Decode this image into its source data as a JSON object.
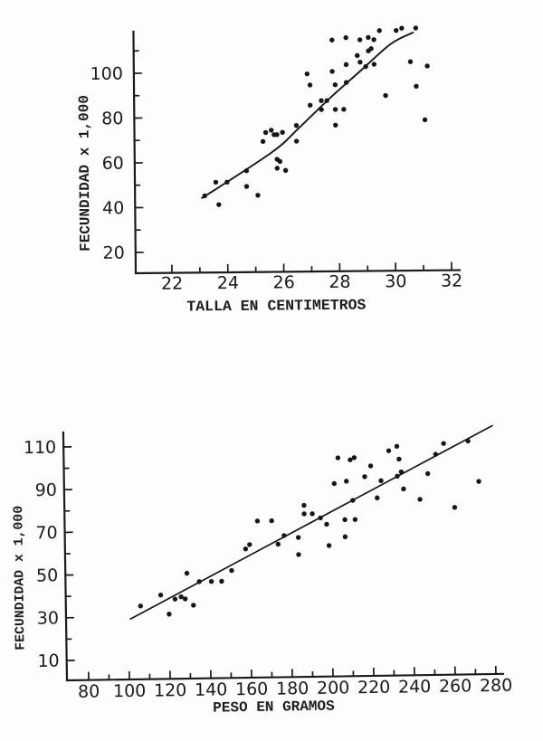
{
  "page": {
    "kind": "scanned scientific figure, two scatter plots of fish fecundity",
    "ink_color": "#1b1b1b",
    "paper_color": "#fdfdfb"
  },
  "chart_data": [
    {
      "type": "scatter",
      "title": "",
      "xlabel": "TALLA EN CENTIMETROS",
      "ylabel": "FECUNDIDAD  x  1,000",
      "xlim": [
        21,
        32.5
      ],
      "ylim": [
        10,
        119
      ],
      "grid": false,
      "legend": "none",
      "x_ticks_labeled": [
        22,
        24,
        26,
        28,
        30,
        32
      ],
      "x_ticks_minor": [
        23,
        25,
        27,
        29,
        31
      ],
      "y_ticks_labeled": [
        20,
        40,
        60,
        80,
        100
      ],
      "y_ticks_minor": [
        30,
        50,
        70,
        90,
        110
      ],
      "points": [
        [
          23.2,
          45
        ],
        [
          23.7,
          41
        ],
        [
          23.6,
          51
        ],
        [
          24.0,
          51
        ],
        [
          24.7,
          56
        ],
        [
          24.7,
          49
        ],
        [
          25.1,
          45
        ],
        [
          25.3,
          69
        ],
        [
          25.4,
          73
        ],
        [
          25.6,
          74
        ],
        [
          25.7,
          72
        ],
        [
          25.8,
          72
        ],
        [
          26.0,
          73
        ],
        [
          26.5,
          76
        ],
        [
          26.5,
          69
        ],
        [
          25.8,
          61
        ],
        [
          25.9,
          60
        ],
        [
          25.8,
          57
        ],
        [
          26.1,
          56
        ],
        [
          26.9,
          99
        ],
        [
          27.8,
          100
        ],
        [
          27.0,
          94
        ],
        [
          27.9,
          94
        ],
        [
          28.3,
          95
        ],
        [
          27.0,
          85
        ],
        [
          27.4,
          87
        ],
        [
          27.6,
          87
        ],
        [
          27.4,
          83
        ],
        [
          27.9,
          83
        ],
        [
          28.2,
          83
        ],
        [
          27.9,
          76
        ],
        [
          27.8,
          114
        ],
        [
          28.3,
          115
        ],
        [
          28.8,
          114
        ],
        [
          29.1,
          115
        ],
        [
          29.3,
          114
        ],
        [
          29.5,
          118
        ],
        [
          30.1,
          118
        ],
        [
          30.3,
          119
        ],
        [
          30.8,
          119
        ],
        [
          29.2,
          110
        ],
        [
          28.7,
          107
        ],
        [
          29.1,
          109
        ],
        [
          28.3,
          103
        ],
        [
          28.8,
          104
        ],
        [
          29.0,
          102
        ],
        [
          29.3,
          103
        ],
        [
          30.6,
          104
        ],
        [
          31.2,
          102
        ],
        [
          29.7,
          89
        ],
        [
          30.8,
          93
        ],
        [
          31.1,
          78
        ]
      ],
      "fit_line": {
        "kind": "curve",
        "points": [
          [
            23.1,
            44
          ],
          [
            25.6,
            64
          ],
          [
            26.6,
            75
          ],
          [
            27.7,
            88
          ],
          [
            28.8,
            100
          ],
          [
            29.9,
            112
          ],
          [
            30.7,
            117
          ]
        ]
      }
    },
    {
      "type": "scatter",
      "title": "",
      "xlabel": "PESO EN GRAMOS",
      "ylabel": "FECUNDIDAD  x  1,000",
      "xlim": [
        70,
        284
      ],
      "ylim": [
        0,
        117
      ],
      "grid": false,
      "legend": "none",
      "x_ticks_labeled": [
        80,
        100,
        120,
        140,
        160,
        180,
        200,
        220,
        240,
        260,
        280
      ],
      "x_ticks_minor": [
        90,
        110,
        130,
        150,
        170,
        190,
        210,
        230,
        250,
        270
      ],
      "y_ticks_labeled": [
        10,
        30,
        50,
        70,
        90,
        110
      ],
      "y_ticks_minor": [
        20,
        40,
        60,
        80,
        100
      ],
      "points": [
        [
          106,
          35
        ],
        [
          116,
          40
        ],
        [
          120,
          31
        ],
        [
          123,
          38
        ],
        [
          126,
          39
        ],
        [
          128,
          38
        ],
        [
          129,
          50
        ],
        [
          132,
          35
        ],
        [
          135,
          46
        ],
        [
          141,
          46
        ],
        [
          146,
          46
        ],
        [
          151,
          51
        ],
        [
          158,
          61
        ],
        [
          160,
          63
        ],
        [
          164,
          74
        ],
        [
          171,
          74
        ],
        [
          174,
          63
        ],
        [
          177,
          67
        ],
        [
          184,
          66
        ],
        [
          184,
          58
        ],
        [
          187,
          81
        ],
        [
          187,
          77
        ],
        [
          191,
          77
        ],
        [
          195,
          75
        ],
        [
          198,
          72
        ],
        [
          199,
          62
        ],
        [
          202,
          91
        ],
        [
          204,
          103
        ],
        [
          207,
          66
        ],
        [
          207,
          74
        ],
        [
          208,
          92
        ],
        [
          210,
          102
        ],
        [
          211,
          83
        ],
        [
          212,
          74
        ],
        [
          212,
          103
        ],
        [
          217,
          94
        ],
        [
          220,
          99
        ],
        [
          223,
          84
        ],
        [
          225,
          92
        ],
        [
          229,
          106
        ],
        [
          233,
          108
        ],
        [
          234,
          102
        ],
        [
          233,
          94
        ],
        [
          235,
          96
        ],
        [
          236,
          88
        ],
        [
          244,
          83
        ],
        [
          248,
          95
        ],
        [
          252,
          104
        ],
        [
          256,
          109
        ],
        [
          261,
          79
        ],
        [
          268,
          110
        ],
        [
          273,
          91
        ]
      ],
      "fit_line": {
        "kind": "line",
        "points": [
          [
            101,
            29
          ],
          [
            280,
            117
          ]
        ]
      }
    }
  ]
}
